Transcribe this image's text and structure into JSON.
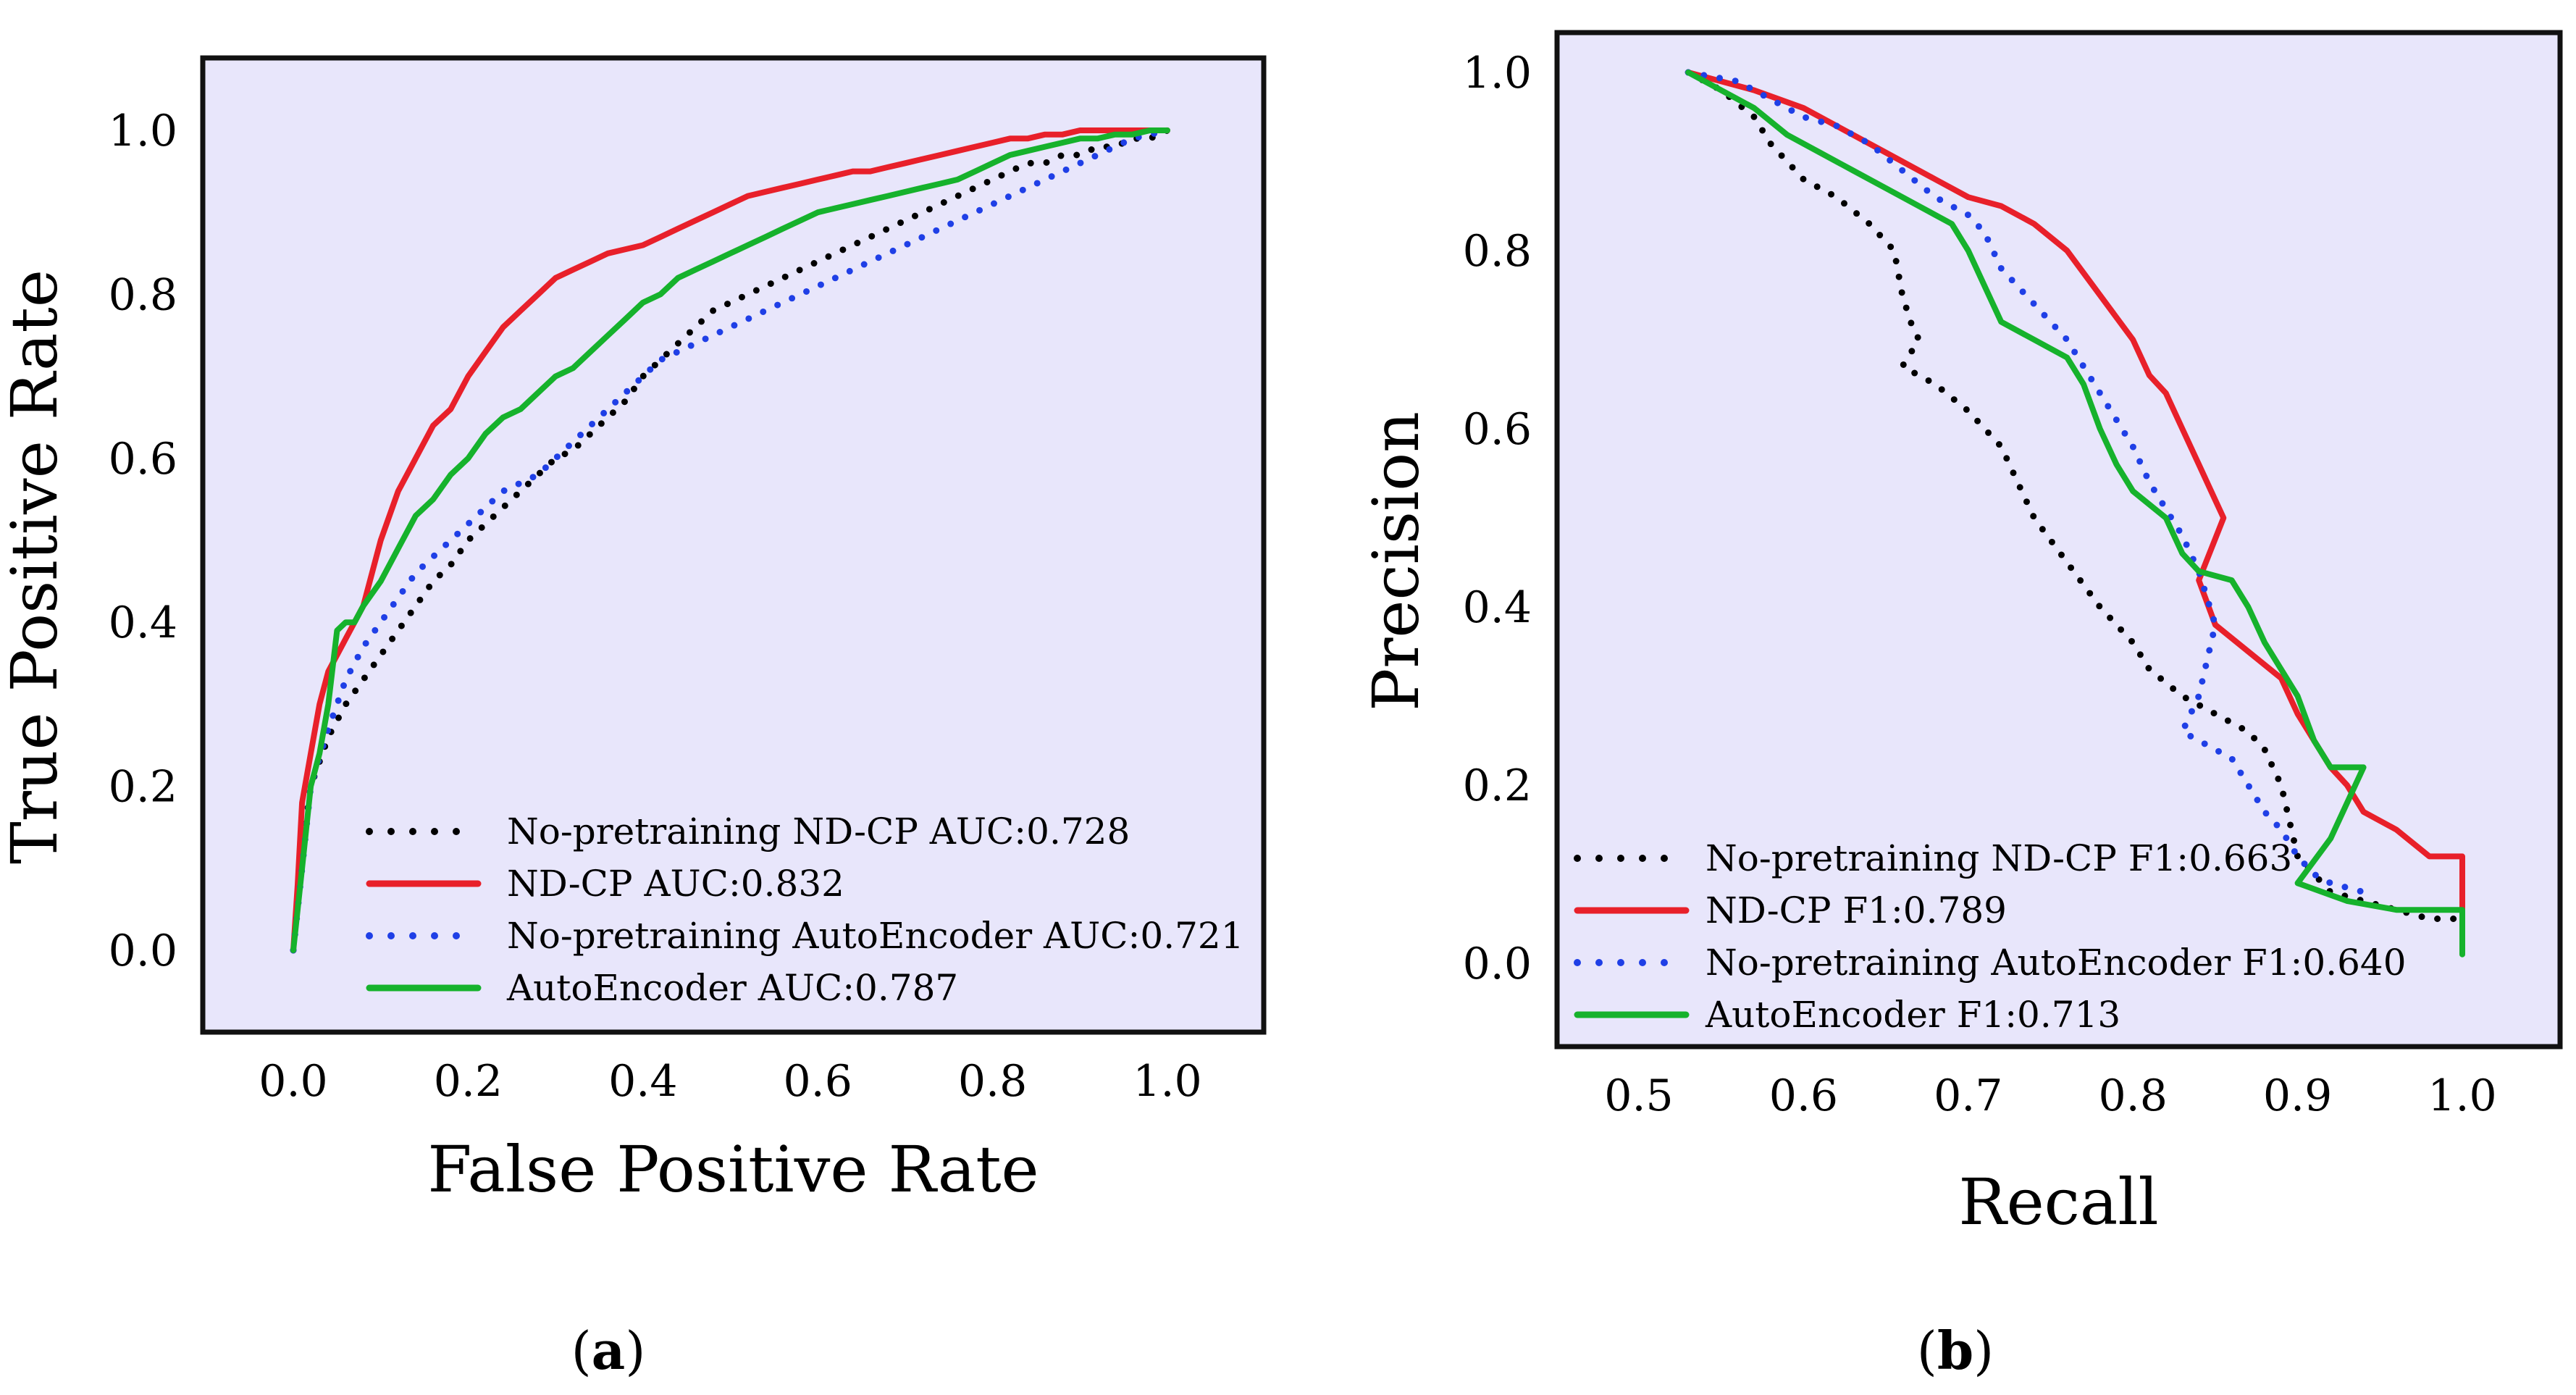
{
  "chart_data": [
    {
      "id": "a",
      "type": "line",
      "panel_label": "a",
      "xlabel": "False Positive Rate",
      "ylabel": "True Positive Rate",
      "xlim": [
        -0.1,
        1.1
      ],
      "ylim": [
        -0.1,
        1.1
      ],
      "xticks": [
        0.0,
        0.2,
        0.4,
        0.6,
        0.8,
        1.0
      ],
      "yticks": [
        0.0,
        0.2,
        0.4,
        0.6,
        0.8,
        1.0
      ],
      "tick_labels": [
        "0.0",
        "0.2",
        "0.4",
        "0.6",
        "0.8",
        "1.0"
      ],
      "legend_position": "bottom-right",
      "series": [
        {
          "name": "No-pretraining ND-CP AUC:0.728",
          "color": "#000000",
          "style": "dotted",
          "x": [
            0.0,
            0.01,
            0.02,
            0.04,
            0.06,
            0.08,
            0.1,
            0.12,
            0.14,
            0.16,
            0.18,
            0.2,
            0.22,
            0.24,
            0.26,
            0.28,
            0.3,
            0.32,
            0.34,
            0.36,
            0.38,
            0.4,
            0.42,
            0.44,
            0.46,
            0.48,
            0.5,
            0.52,
            0.54,
            0.56,
            0.58,
            0.6,
            0.62,
            0.64,
            0.66,
            0.68,
            0.7,
            0.72,
            0.74,
            0.76,
            0.78,
            0.8,
            0.82,
            0.84,
            0.86,
            0.88,
            0.9,
            0.92,
            0.94,
            0.96,
            0.98,
            1.0
          ],
          "y": [
            0.0,
            0.12,
            0.2,
            0.26,
            0.3,
            0.33,
            0.36,
            0.39,
            0.42,
            0.45,
            0.47,
            0.5,
            0.52,
            0.54,
            0.56,
            0.58,
            0.6,
            0.61,
            0.63,
            0.65,
            0.67,
            0.7,
            0.72,
            0.74,
            0.76,
            0.78,
            0.79,
            0.8,
            0.81,
            0.82,
            0.83,
            0.84,
            0.85,
            0.86,
            0.87,
            0.88,
            0.89,
            0.9,
            0.91,
            0.92,
            0.93,
            0.94,
            0.95,
            0.96,
            0.96,
            0.97,
            0.97,
            0.98,
            0.98,
            0.99,
            0.99,
            1.0
          ]
        },
        {
          "name": "ND-CP AUC:0.832",
          "color": "#e8202a",
          "style": "solid",
          "x": [
            0.0,
            0.005,
            0.01,
            0.02,
            0.03,
            0.04,
            0.06,
            0.08,
            0.1,
            0.12,
            0.14,
            0.16,
            0.18,
            0.2,
            0.22,
            0.24,
            0.26,
            0.28,
            0.3,
            0.32,
            0.34,
            0.36,
            0.38,
            0.4,
            0.42,
            0.44,
            0.46,
            0.48,
            0.5,
            0.52,
            0.54,
            0.56,
            0.58,
            0.6,
            0.62,
            0.64,
            0.66,
            0.68,
            0.7,
            0.72,
            0.74,
            0.76,
            0.78,
            0.8,
            0.82,
            0.84,
            0.86,
            0.88,
            0.9,
            0.92,
            0.94,
            0.96,
            0.98,
            1.0
          ],
          "y": [
            0.0,
            0.08,
            0.18,
            0.24,
            0.3,
            0.34,
            0.38,
            0.42,
            0.5,
            0.56,
            0.6,
            0.64,
            0.66,
            0.7,
            0.73,
            0.76,
            0.78,
            0.8,
            0.82,
            0.83,
            0.84,
            0.85,
            0.855,
            0.86,
            0.87,
            0.88,
            0.89,
            0.9,
            0.91,
            0.92,
            0.925,
            0.93,
            0.935,
            0.94,
            0.945,
            0.95,
            0.95,
            0.955,
            0.96,
            0.965,
            0.97,
            0.975,
            0.98,
            0.985,
            0.99,
            0.99,
            0.995,
            0.995,
            1.0,
            1.0,
            1.0,
            1.0,
            1.0,
            1.0
          ]
        },
        {
          "name": "No-pretraining AutoEncoder AUC:0.721",
          "color": "#1f3fe6",
          "style": "dotted",
          "x": [
            0.0,
            0.01,
            0.02,
            0.04,
            0.06,
            0.08,
            0.1,
            0.12,
            0.14,
            0.16,
            0.18,
            0.2,
            0.22,
            0.24,
            0.26,
            0.28,
            0.3,
            0.32,
            0.34,
            0.36,
            0.38,
            0.4,
            0.42,
            0.44,
            0.46,
            0.48,
            0.5,
            0.52,
            0.54,
            0.56,
            0.58,
            0.6,
            0.62,
            0.64,
            0.66,
            0.68,
            0.7,
            0.72,
            0.74,
            0.76,
            0.78,
            0.8,
            0.82,
            0.84,
            0.86,
            0.88,
            0.9,
            0.92,
            0.94,
            0.96,
            0.98,
            1.0
          ],
          "y": [
            0.0,
            0.1,
            0.2,
            0.27,
            0.33,
            0.37,
            0.4,
            0.43,
            0.46,
            0.48,
            0.5,
            0.52,
            0.54,
            0.56,
            0.57,
            0.58,
            0.6,
            0.62,
            0.64,
            0.66,
            0.68,
            0.7,
            0.72,
            0.73,
            0.74,
            0.75,
            0.76,
            0.77,
            0.78,
            0.79,
            0.8,
            0.81,
            0.82,
            0.83,
            0.84,
            0.85,
            0.86,
            0.87,
            0.88,
            0.89,
            0.9,
            0.91,
            0.92,
            0.93,
            0.94,
            0.95,
            0.96,
            0.97,
            0.98,
            0.99,
            0.995,
            1.0
          ]
        },
        {
          "name": "AutoEncoder AUC:0.787",
          "color": "#16b22c",
          "style": "solid",
          "x": [
            0.0,
            0.01,
            0.02,
            0.03,
            0.04,
            0.05,
            0.06,
            0.07,
            0.08,
            0.1,
            0.12,
            0.14,
            0.16,
            0.18,
            0.2,
            0.22,
            0.24,
            0.26,
            0.28,
            0.3,
            0.32,
            0.34,
            0.36,
            0.38,
            0.4,
            0.42,
            0.44,
            0.46,
            0.48,
            0.5,
            0.52,
            0.54,
            0.56,
            0.58,
            0.6,
            0.62,
            0.64,
            0.66,
            0.68,
            0.7,
            0.72,
            0.74,
            0.76,
            0.78,
            0.8,
            0.82,
            0.84,
            0.86,
            0.88,
            0.9,
            0.92,
            0.94,
            0.96,
            0.98,
            1.0
          ],
          "y": [
            0.0,
            0.1,
            0.2,
            0.24,
            0.3,
            0.39,
            0.4,
            0.4,
            0.42,
            0.45,
            0.49,
            0.53,
            0.55,
            0.58,
            0.6,
            0.63,
            0.65,
            0.66,
            0.68,
            0.7,
            0.71,
            0.73,
            0.75,
            0.77,
            0.79,
            0.8,
            0.82,
            0.83,
            0.84,
            0.85,
            0.86,
            0.87,
            0.88,
            0.89,
            0.9,
            0.905,
            0.91,
            0.915,
            0.92,
            0.925,
            0.93,
            0.935,
            0.94,
            0.95,
            0.96,
            0.97,
            0.975,
            0.98,
            0.985,
            0.99,
            0.99,
            0.995,
            0.995,
            1.0,
            1.0
          ]
        }
      ]
    },
    {
      "id": "b",
      "type": "line",
      "panel_label": "b",
      "xlabel": "Recall",
      "ylabel": "Precision",
      "xlim": [
        0.45,
        1.06
      ],
      "ylim": [
        -0.1,
        1.05
      ],
      "xticks": [
        0.5,
        0.6,
        0.7,
        0.8,
        0.9,
        1.0
      ],
      "yticks": [
        0.0,
        0.2,
        0.4,
        0.6,
        0.8,
        1.0
      ],
      "xtick_labels": [
        "0.5",
        "0.6",
        "0.7",
        "0.8",
        "0.9",
        "1.0"
      ],
      "ytick_labels": [
        "0.0",
        "0.2",
        "0.4",
        "0.6",
        "0.8",
        "1.0"
      ],
      "legend_position": "bottom-left",
      "series": [
        {
          "name": "No-pretraining ND-CP F1:0.663",
          "color": "#000000",
          "style": "dotted",
          "x": [
            0.53,
            0.55,
            0.57,
            0.58,
            0.6,
            0.62,
            0.64,
            0.655,
            0.66,
            0.665,
            0.67,
            0.66,
            0.68,
            0.7,
            0.72,
            0.73,
            0.74,
            0.76,
            0.78,
            0.8,
            0.81,
            0.83,
            0.85,
            0.87,
            0.88,
            0.89,
            0.9,
            0.92,
            0.94,
            0.96,
            0.98,
            1.0
          ],
          "y": [
            1.0,
            0.98,
            0.95,
            0.92,
            0.88,
            0.86,
            0.83,
            0.8,
            0.75,
            0.72,
            0.7,
            0.67,
            0.65,
            0.62,
            0.58,
            0.54,
            0.5,
            0.45,
            0.4,
            0.36,
            0.33,
            0.3,
            0.28,
            0.26,
            0.24,
            0.2,
            0.12,
            0.08,
            0.07,
            0.06,
            0.05,
            0.05
          ]
        },
        {
          "name": "ND-CP F1:0.789",
          "color": "#e8202a",
          "style": "solid",
          "x": [
            0.53,
            0.55,
            0.57,
            0.6,
            0.62,
            0.65,
            0.68,
            0.7,
            0.72,
            0.74,
            0.76,
            0.78,
            0.8,
            0.81,
            0.82,
            0.83,
            0.84,
            0.85,
            0.855,
            0.84,
            0.85,
            0.87,
            0.89,
            0.9,
            0.91,
            0.92,
            0.93,
            0.94,
            0.96,
            0.98,
            1.0,
            1.0
          ],
          "y": [
            1.0,
            0.99,
            0.98,
            0.96,
            0.94,
            0.91,
            0.88,
            0.86,
            0.85,
            0.83,
            0.8,
            0.75,
            0.7,
            0.66,
            0.64,
            0.6,
            0.56,
            0.52,
            0.5,
            0.43,
            0.38,
            0.35,
            0.32,
            0.28,
            0.25,
            0.22,
            0.2,
            0.17,
            0.15,
            0.12,
            0.12,
            0.02
          ]
        },
        {
          "name": "No-pretraining AutoEncoder F1:0.640",
          "color": "#1f3fe6",
          "style": "dotted",
          "x": [
            0.53,
            0.56,
            0.58,
            0.6,
            0.62,
            0.64,
            0.66,
            0.68,
            0.69,
            0.7,
            0.71,
            0.72,
            0.74,
            0.76,
            0.78,
            0.8,
            0.81,
            0.83,
            0.84,
            0.85,
            0.84,
            0.83,
            0.86,
            0.87,
            0.88,
            0.89,
            0.9,
            0.91,
            0.92,
            0.94
          ],
          "y": [
            1.0,
            0.99,
            0.97,
            0.95,
            0.94,
            0.92,
            0.89,
            0.86,
            0.85,
            0.84,
            0.82,
            0.78,
            0.74,
            0.7,
            0.64,
            0.58,
            0.54,
            0.48,
            0.44,
            0.38,
            0.3,
            0.26,
            0.23,
            0.2,
            0.17,
            0.15,
            0.12,
            0.1,
            0.09,
            0.08
          ]
        },
        {
          "name": "AutoEncoder F1:0.713",
          "color": "#16b22c",
          "style": "solid",
          "x": [
            0.53,
            0.55,
            0.57,
            0.59,
            0.61,
            0.63,
            0.65,
            0.67,
            0.69,
            0.7,
            0.71,
            0.72,
            0.74,
            0.76,
            0.77,
            0.78,
            0.79,
            0.8,
            0.82,
            0.83,
            0.84,
            0.86,
            0.87,
            0.88,
            0.9,
            0.91,
            0.92,
            0.94,
            0.92,
            0.9,
            0.93,
            0.96,
            0.98,
            1.0,
            1.0
          ],
          "y": [
            1.0,
            0.98,
            0.96,
            0.93,
            0.91,
            0.89,
            0.87,
            0.85,
            0.83,
            0.8,
            0.76,
            0.72,
            0.7,
            0.68,
            0.65,
            0.6,
            0.56,
            0.53,
            0.5,
            0.46,
            0.44,
            0.43,
            0.4,
            0.36,
            0.3,
            0.25,
            0.22,
            0.22,
            0.14,
            0.09,
            0.07,
            0.06,
            0.06,
            0.06,
            0.01
          ]
        }
      ]
    }
  ]
}
